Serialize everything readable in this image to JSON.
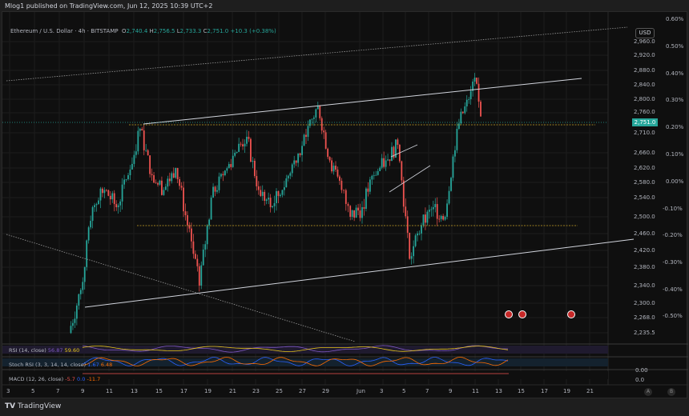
{
  "publisher": "Mlog1 published on TradingView.com, Jun 12, 2025 10:39 UTC+2",
  "symbol": {
    "name": "Ethereum / U.S. Dollar · 4h · BITSTAMP",
    "o_label": "O",
    "o": "2,740.4",
    "h_label": "H",
    "h": "2,756.5",
    "l_label": "L",
    "l": "2,733.3",
    "c_label": "C",
    "c": "2,751.0",
    "change": "+10.3 (+0.38%)"
  },
  "currency": "USD",
  "last_price": "2,751.0",
  "colors": {
    "up": "#26a69a",
    "down": "#ef5350",
    "line": "#d1d4dc",
    "level": "#c9a227",
    "rsi": "#7e57c2",
    "stoch_k": "#2962ff",
    "stoch_d": "#ff6d00",
    "macd": "#ef5350"
  },
  "indicators": {
    "rsi": {
      "label": "RSI (14, close)",
      "v1": "56.87",
      "v2": "59.60"
    },
    "stoch": {
      "label": "Stoch RSI (3, 3, 14, 14, close)",
      "v1": "1.67",
      "v2": "6.48"
    },
    "macd": {
      "label": "MACD (12, 26, close)",
      "v1": "-5.7",
      "v2": "0.0",
      "v3": "-11.7"
    },
    "stoch_axis": "0.00",
    "macd_axis": "0.0"
  },
  "footer": "TradingView",
  "axis_buttons": [
    "A",
    "B"
  ],
  "chart_data": {
    "type": "candlestick",
    "interval": "4h",
    "price_ticks": [
      "2,960.0",
      "2,920.0",
      "2,880.0",
      "2,840.0",
      "2,800.0",
      "2,760.0",
      "2,710.0",
      "2,660.0",
      "2,620.0",
      "2,580.0",
      "2,540.0",
      "2,500.0",
      "2,460.0",
      "2,420.0",
      "2,380.0",
      "2,340.0",
      "2,300.0",
      "2,268.0",
      "2,235.5"
    ],
    "percent_ticks": [
      "0.60%",
      "0.50%",
      "0.40%",
      "0.30%",
      "0.20%",
      "0.10%",
      "0.00%",
      "-0.10%",
      "-0.20%",
      "-0.30%",
      "-0.40%",
      "-0.50%"
    ],
    "x_ticks": [
      "3",
      "5",
      "7",
      "9",
      "11",
      "13",
      "15",
      "17",
      "19",
      "21",
      "23",
      "25",
      "27",
      "29",
      "Jun",
      "3",
      "5",
      "7",
      "9",
      "11",
      "13",
      "15",
      "17",
      "19",
      "21"
    ],
    "price_path": [
      [
        "May 8",
        2235
      ],
      [
        "May 9",
        2330
      ],
      [
        "May 10",
        2520
      ],
      [
        "May 11",
        2560
      ],
      [
        "May 12",
        2520
      ],
      [
        "May 13",
        2600
      ],
      [
        "May 14",
        2720
      ],
      [
        "May 15",
        2600
      ],
      [
        "May 16",
        2560
      ],
      [
        "May 17",
        2620
      ],
      [
        "May 18",
        2480
      ],
      [
        "May 19",
        2340
      ],
      [
        "May 20",
        2540
      ],
      [
        "May 21",
        2600
      ],
      [
        "May 22",
        2660
      ],
      [
        "May 23",
        2700
      ],
      [
        "May 24",
        2560
      ],
      [
        "May 25",
        2520
      ],
      [
        "May 26",
        2560
      ],
      [
        "May 27",
        2640
      ],
      [
        "May 28",
        2700
      ],
      [
        "May 29",
        2780
      ],
      [
        "May 30",
        2640
      ],
      [
        "May 31",
        2560
      ],
      [
        "Jun 1",
        2500
      ],
      [
        "Jun 2",
        2520
      ],
      [
        "Jun 3",
        2600
      ],
      [
        "Jun 4",
        2640
      ],
      [
        "Jun 5",
        2680
      ],
      [
        "Jun 6",
        2400
      ],
      [
        "Jun 7",
        2480
      ],
      [
        "Jun 8",
        2520
      ],
      [
        "Jun 9",
        2500
      ],
      [
        "Jun 10",
        2720
      ],
      [
        "Jun 11",
        2800
      ],
      [
        "Jun 11.5",
        2860
      ],
      [
        "Jun 12",
        2751
      ]
    ],
    "levels": [
      2740,
      2478
    ]
  }
}
